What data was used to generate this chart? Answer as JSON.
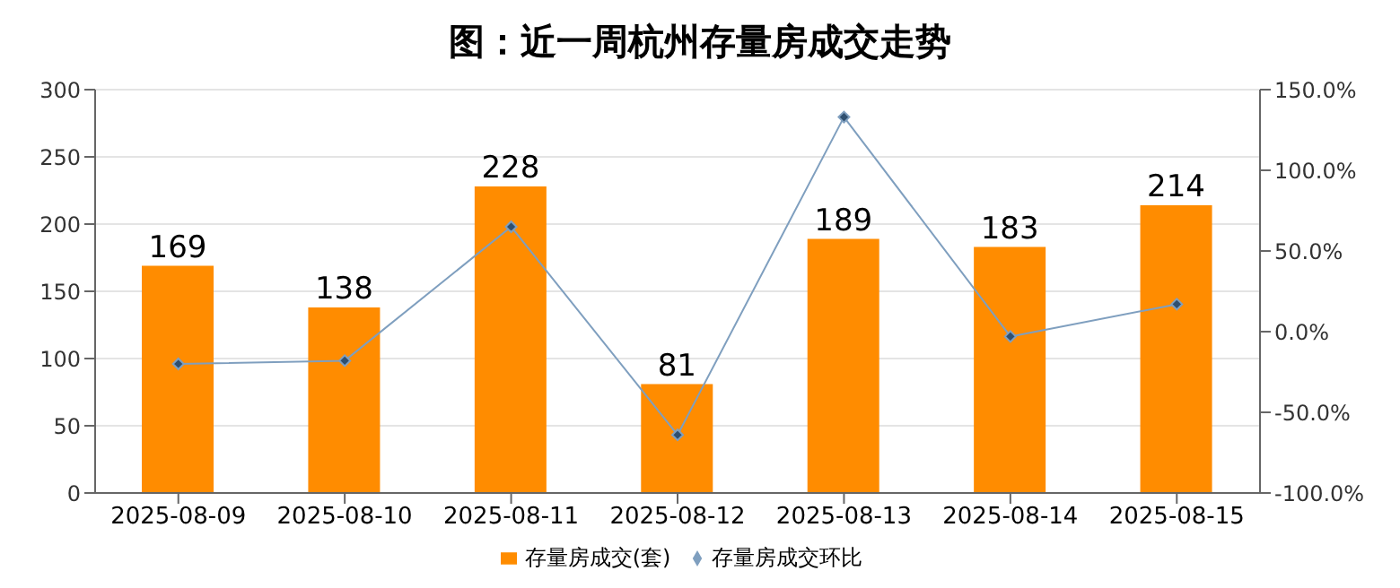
{
  "chart_data": {
    "type": "bar",
    "title": "图：近一周杭州存量房成交走势",
    "categories": [
      "2025-08-09",
      "2025-08-10",
      "2025-08-11",
      "2025-08-12",
      "2025-08-13",
      "2025-08-14",
      "2025-08-15"
    ],
    "series": [
      {
        "name": "存量房成交(套)",
        "color": "#ff8c00",
        "values": [
          169,
          138,
          228,
          81,
          189,
          183,
          214
        ],
        "data_labels": true
      },
      {
        "name": "存量房成交环比",
        "type": "line",
        "axis": "y2",
        "color": "#7f9fbf",
        "values": [
          -20,
          -18,
          65,
          -64,
          133,
          -3,
          17
        ],
        "marker": "diamond"
      }
    ],
    "ylim": [
      0,
      300
    ],
    "yticks": [
      0,
      50,
      100,
      150,
      200,
      250,
      300
    ],
    "y2lim": [
      -100,
      150
    ],
    "y2ticks": [
      {
        "value": -100,
        "label": "-100.0%"
      },
      {
        "value": -50,
        "label": "-50.0%"
      },
      {
        "value": 0,
        "label": "0.0%"
      },
      {
        "value": 50,
        "label": "50.0%"
      },
      {
        "value": 100,
        "label": "100.0%"
      },
      {
        "value": 150,
        "label": "150.0%"
      }
    ],
    "grid": "y",
    "legend": "bottom"
  }
}
